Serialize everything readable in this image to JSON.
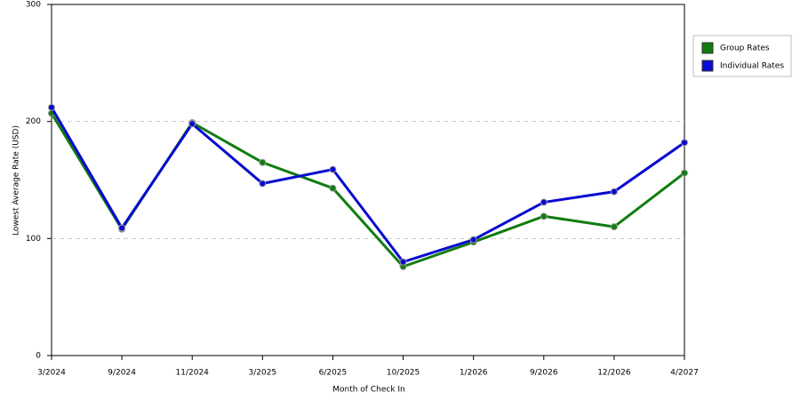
{
  "chart_data": {
    "type": "line",
    "x_label": "Month of Check In",
    "y_label": "Lowest Average Rate (USD)",
    "categories": [
      "3/2024",
      "9/2024",
      "11/2024",
      "3/2025",
      "6/2025",
      "10/2025",
      "1/2026",
      "9/2026",
      "12/2026",
      "4/2027"
    ],
    "series": [
      {
        "name": "Group Rates",
        "color": "#107c10",
        "values": [
          207,
          108,
          199,
          165,
          143,
          76,
          97,
          119,
          110,
          156
        ]
      },
      {
        "name": "Individual Rates",
        "color": "#0a0ad0",
        "values": [
          212,
          109,
          198,
          147,
          159,
          80,
          99,
          131,
          140,
          182
        ]
      }
    ],
    "ylim": [
      0,
      300
    ],
    "yticks": [
      0,
      100,
      200,
      300
    ],
    "grid": true,
    "legend": "right"
  }
}
